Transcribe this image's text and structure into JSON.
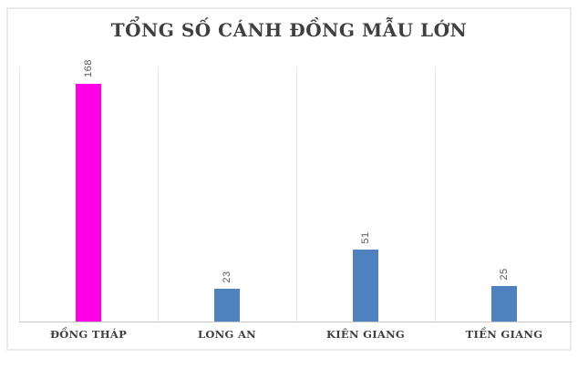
{
  "chart_data": {
    "type": "bar",
    "title": "TỔNG SỐ CÁNH ĐỒNG MẪU LỚN",
    "categories": [
      "ĐỒNG THÁP",
      "LONG AN",
      "KIÊN GIANG",
      "TIỀN GIANG"
    ],
    "values": [
      168,
      23,
      51,
      25
    ],
    "data_labels": [
      "168",
      "23",
      "51",
      "25"
    ],
    "data_label_rotation_deg": -90,
    "xlabel": "",
    "ylabel": "",
    "ylim": [
      0,
      180
    ],
    "legend": "none",
    "grid": "vertical category separators only, no y-axis tick labels",
    "bar_colors": [
      "#FF00E6",
      "#4E82BE",
      "#4E82BE",
      "#4E82BE"
    ],
    "highlight_color": "#FF00E6",
    "series_color": "#4E82BE",
    "title_color": "#3F3F3F",
    "data_label_color": "#595959",
    "gridline_color": "#E9E9E9",
    "axis_line_color": "#C9C9C9",
    "panel_border_color": "#EBEBEB"
  }
}
